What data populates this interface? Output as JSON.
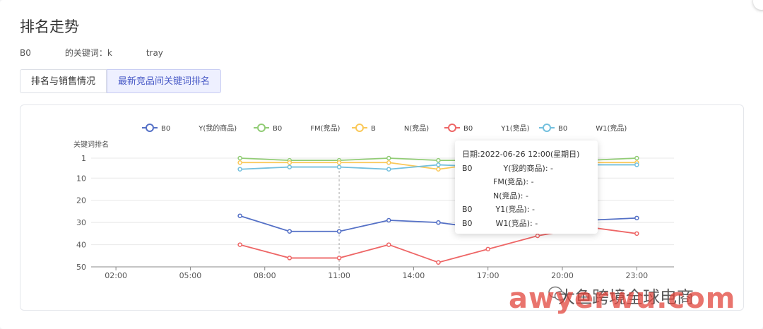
{
  "modal": {
    "title": "排名走势",
    "subtitle": "B0　　　　的关键词：k　　　　tray"
  },
  "tabs": [
    {
      "label": "排名与销售情况",
      "active": false
    },
    {
      "label": "最新竞品间关键词排名",
      "active": true
    }
  ],
  "tooltip": {
    "date": "日期:2022-06-26 12:00(星期日)",
    "rows": [
      "B0　　　　Y(我的商品): -",
      "　　　　FM(竞品): -",
      "　　　　N(竞品): -",
      "B0　　　Y1(竞品): -",
      "B0　　　W1(竞品): -"
    ]
  },
  "watermark": {
    "text": "awyerwu.com",
    "brand": "大鱼跨境全球电商"
  },
  "chart_data": {
    "type": "line",
    "ylabel": "关键词排名",
    "y_ticks": [
      1,
      10,
      20,
      30,
      40,
      50
    ],
    "ylim": [
      1,
      50
    ],
    "y_inverted": true,
    "x_ticks": [
      "02:00",
      "05:00",
      "08:00",
      "11:00",
      "14:00",
      "17:00",
      "20:00",
      "23:00"
    ],
    "x": [
      "07:00",
      "09:00",
      "11:00",
      "13:00",
      "15:00",
      "17:00",
      "19:00",
      "21:00",
      "23:00"
    ],
    "grid": true,
    "legend_position": "top",
    "series": [
      {
        "name": "B0　　　　Y(我的商品)",
        "color": "#5470c6",
        "values": [
          27,
          34,
          34,
          29,
          30,
          33,
          32,
          29,
          28
        ]
      },
      {
        "name": "B0　　　　FM(竞品)",
        "color": "#91cc75",
        "values": [
          1,
          2,
          2,
          1,
          2,
          2,
          2,
          2,
          1
        ]
      },
      {
        "name": "B　　　　N(竞品)",
        "color": "#fac858",
        "values": [
          3,
          3,
          3,
          3,
          6,
          3,
          3,
          3,
          3
        ]
      },
      {
        "name": "B0　　　　Y1(竞品)",
        "color": "#ee6666",
        "values": [
          40,
          46,
          46,
          40,
          48,
          42,
          36,
          32,
          35
        ]
      },
      {
        "name": "B0　　　　W1(竞品)",
        "color": "#73c0de",
        "values": [
          6,
          5,
          5,
          6,
          4,
          5,
          4,
          4,
          4
        ]
      }
    ]
  }
}
